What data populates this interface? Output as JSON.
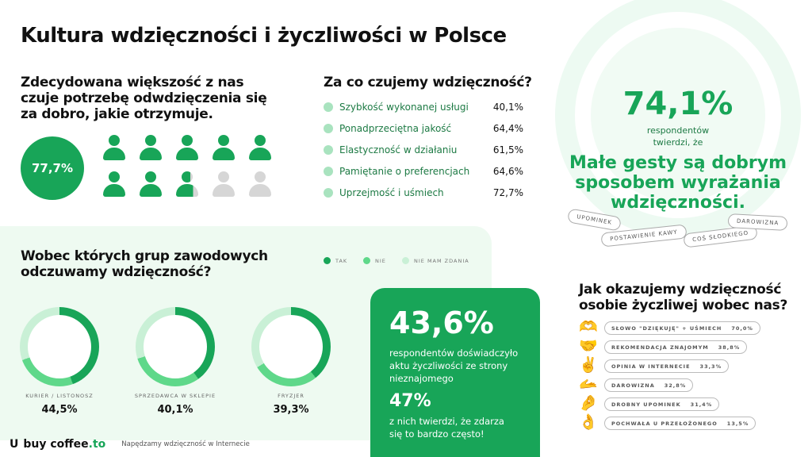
{
  "title": "Kultura wdzięczności i życzliwości w Polsce",
  "reciprocity": {
    "heading": "Zdecydowana większość z nas czuje potrzebę odwdzięczenia się za dobro, jakie otrzymuje.",
    "value": "77,7%",
    "fraction": 0.777
  },
  "gratitude_for": {
    "heading": "Za co czujemy wdzięczność?",
    "items": [
      {
        "icon": "lightning-icon",
        "label": "Szybkość wykonanej usługi",
        "value": "40,1%"
      },
      {
        "icon": "shield-icon",
        "label": "Ponadprzeciętna jakość",
        "value": "64,4%"
      },
      {
        "icon": "gear-icon",
        "label": "Elastyczność w działaniu",
        "value": "61,5%"
      },
      {
        "icon": "heart-icon",
        "label": "Pamiętanie o preferencjach",
        "value": "64,6%"
      },
      {
        "icon": "smile-icon",
        "label": "Uprzejmość i uśmiech",
        "value": "72,7%"
      }
    ]
  },
  "small_gestures": {
    "value": "74,1%",
    "line1": "respondentów",
    "line2": "twierdzi, że",
    "statement": "Małe gesty są dobrym sposobem wyrażania wdzięczności.",
    "tags": [
      "UPOMINEK",
      "POSTAWIENIE KAWY",
      "COŚ SŁODKIEGO",
      "DAROWIZNA"
    ]
  },
  "professions": {
    "heading": "Wobec których grup zawodowych odczuwamy wdzięczność?",
    "legend": [
      {
        "label": "TAK",
        "color": "#18a558"
      },
      {
        "label": "NIE",
        "color": "#5fd88a"
      },
      {
        "label": "NIE MAM ZDANIA",
        "color": "#c9f0d6"
      }
    ],
    "items": [
      {
        "label": "KURIER / LISTONOSZ",
        "value": "44,5%",
        "tak": 44.5,
        "nie": 25
      },
      {
        "label": "SPRZEDAWCA W SKLEPIE",
        "value": "40,1%",
        "tak": 40.1,
        "nie": 30
      },
      {
        "label": "FRYZJER",
        "value": "39,3%",
        "tak": 39.3,
        "nie": 27
      }
    ]
  },
  "kindness": {
    "value": "43,6%",
    "text": "respondentów doświadczyło aktu życzliwości ze strony nieznajomego",
    "value2": "47%",
    "text2": "z nich twierdzi, że zdarza się to bardzo często!"
  },
  "how_show": {
    "heading": "Jak okazujemy wdzięczność osobie życzliwej wobec nas?",
    "items": [
      {
        "emoji": "🫶",
        "label": "SŁOWO \"DZIĘKUJĘ\" + UŚMIECH",
        "value": "70,0%"
      },
      {
        "emoji": "🤝",
        "label": "REKOMENDACJA ZNAJOMYM",
        "value": "38,8%"
      },
      {
        "emoji": "✌️",
        "label": "OPINIA W INTERNECIE",
        "value": "33,3%"
      },
      {
        "emoji": "🫴",
        "label": "DAROWIZNA",
        "value": "32,8%"
      },
      {
        "emoji": "🤌",
        "label": "DROBNY UPOMINEK",
        "value": "31,4%"
      },
      {
        "emoji": "👌",
        "label": "POCHWAŁA U PRZEŁOŻONEGO",
        "value": "13,5%"
      }
    ]
  },
  "footer": {
    "brand": "buy coffee",
    "brand_tld": ".to",
    "tagline": "Napędzamy wdzięczność w Internecie"
  },
  "colors": {
    "accent": "#18a558",
    "light": "#5fd88a",
    "pale": "#c9f0d6",
    "gray": "#d6d6d6"
  }
}
